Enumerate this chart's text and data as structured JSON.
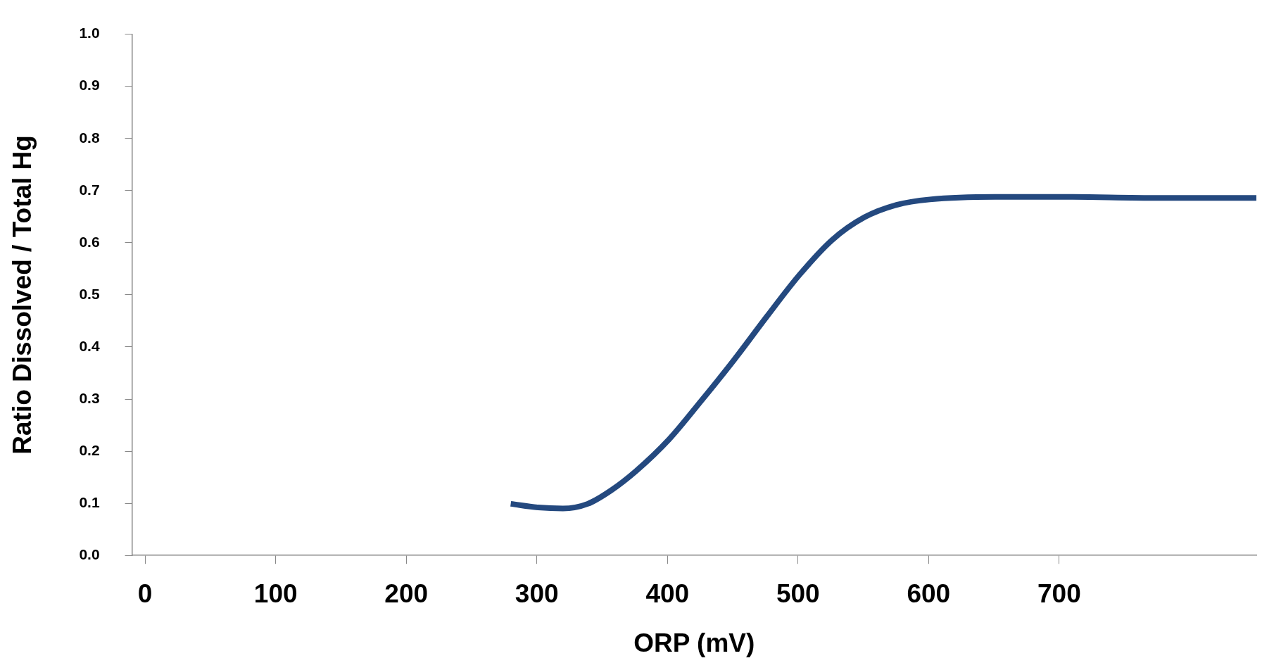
{
  "chart_data": {
    "type": "line",
    "xlabel": "ORP (mV)",
    "ylabel": "Ratio Dissolved / Total Hg",
    "xlim": [
      -10,
      851
    ],
    "xticks": [
      0,
      100,
      200,
      300,
      400,
      500,
      600,
      700
    ],
    "ylim": [
      0,
      1
    ],
    "yticks": [
      {
        "value": 0,
        "label": "0.0"
      },
      {
        "value": 0.1,
        "label": "0.1"
      },
      {
        "value": 0.2,
        "label": "0.2"
      },
      {
        "value": 0.3,
        "label": "0.3"
      },
      {
        "value": 0.4,
        "label": "0.4"
      },
      {
        "value": 0.5,
        "label": "0.5"
      },
      {
        "value": 0.6,
        "label": "0.6"
      },
      {
        "value": 0.7,
        "label": "0.7"
      },
      {
        "value": 0.8,
        "label": "0.8"
      },
      {
        "value": 0.9,
        "label": "0.9"
      },
      {
        "value": 1,
        "label": "1.0"
      }
    ],
    "grid": false,
    "legend": false,
    "marker": "none",
    "line_style": "solid",
    "series": [
      {
        "color": "#24497f",
        "x": [
          280,
          301,
          320,
          339,
          357,
          376,
          401,
          426,
          451,
          476,
          501,
          526,
          551,
          576,
          601,
          651,
          701,
          776,
          851
        ],
        "values": [
          0.099,
          0.092,
          0.09,
          0.099,
          0.125,
          0.162,
          0.222,
          0.297,
          0.375,
          0.458,
          0.538,
          0.605,
          0.649,
          0.673,
          0.683,
          0.688,
          0.688,
          0.686,
          0.686
        ]
      }
    ]
  }
}
